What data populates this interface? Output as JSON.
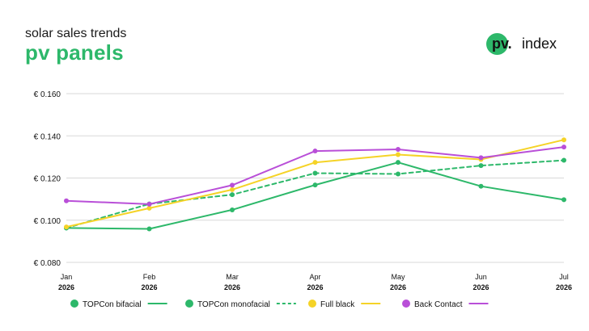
{
  "header": {
    "subtitle": "solar sales trends",
    "title": "pv panels"
  },
  "logo": {
    "mark": "pv.",
    "text": "index"
  },
  "colors": {
    "title": "#2db86a",
    "grid": "#d9d9d9",
    "axis_text": "#111111"
  },
  "chart_data": {
    "type": "line",
    "categories": [
      "Jan 2026",
      "Feb 2026",
      "Mar 2026",
      "Apr 2026",
      "May 2026",
      "Jun 2026",
      "Jul 2026"
    ],
    "x_tick_labels": [
      [
        "Jan",
        "2026"
      ],
      [
        "Feb",
        "2026"
      ],
      [
        "Mar",
        "2026"
      ],
      [
        "Apr",
        "2026"
      ],
      [
        "May",
        "2026"
      ],
      [
        "Jun",
        "2026"
      ],
      [
        "Jul",
        "2026"
      ]
    ],
    "y_ticks": [
      "€ 0.080",
      "€ 0.100",
      "€ 0.120",
      "€ 0.140",
      "€ 0.160"
    ],
    "y_tick_values": [
      0.08,
      0.1,
      0.12,
      0.14,
      0.16
    ],
    "ylim": [
      0.08,
      0.16
    ],
    "unit": "€",
    "grid": true,
    "legend_position": "bottom",
    "series": [
      {
        "name": "TOPCon bifacial",
        "color": "#2db86a",
        "dashed": false,
        "values": [
          0.0963,
          0.0959,
          0.1049,
          0.1167,
          0.1274,
          0.1161,
          0.1097
        ]
      },
      {
        "name": "TOPCon monofacial",
        "color": "#2db86a",
        "dashed": true,
        "values": [
          0.0963,
          0.1077,
          0.1121,
          0.1223,
          0.1219,
          0.1259,
          0.1284
        ]
      },
      {
        "name": "Full black",
        "color": "#f5d327",
        "dashed": false,
        "values": [
          0.0968,
          0.1057,
          0.1145,
          0.1274,
          0.1311,
          0.1288,
          0.1381
        ]
      },
      {
        "name": "Back Contact",
        "color": "#b94fd8",
        "dashed": false,
        "values": [
          0.1092,
          0.1076,
          0.1166,
          0.1328,
          0.1336,
          0.1296,
          0.1347
        ]
      }
    ]
  }
}
